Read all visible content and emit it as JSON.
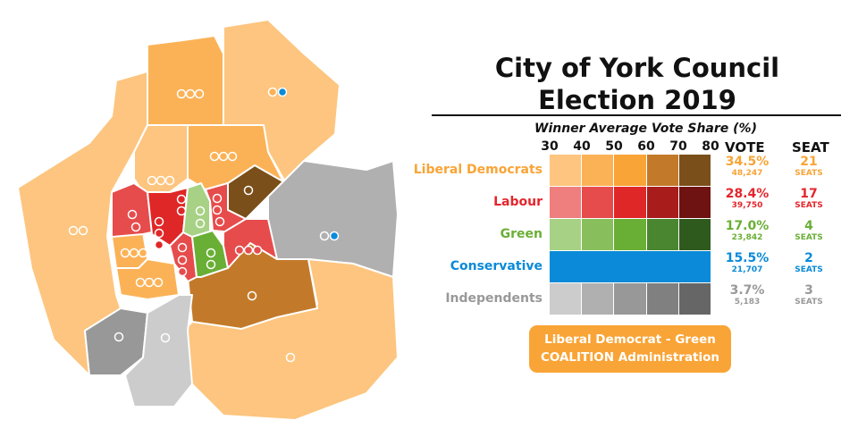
{
  "title_line1": "City of York Council",
  "title_line2": "Election 2019",
  "scale_title": "Winner Average Vote Share (%)",
  "scale_ticks": [
    "30",
    "40",
    "50",
    "60",
    "70",
    "80"
  ],
  "col_vote": "VOTE",
  "col_seat": "SEAT",
  "parties": [
    {
      "name": "Liberal Democrats",
      "color": "#f9a436",
      "shades": [
        "#fdc57f",
        "#fbb256",
        "#f9a436",
        "#c27a2a",
        "#7a4f1a"
      ],
      "vote_pct": "34.5%",
      "votes": "48,247",
      "seats": "21",
      "seats_label": "SEATS"
    },
    {
      "name": "Labour",
      "color": "#e3262c",
      "shades": [
        "#ef7f7f",
        "#e64c4c",
        "#e02727",
        "#a81c1c",
        "#6e1212"
      ],
      "vote_pct": "28.4%",
      "votes": "39,750",
      "seats": "17",
      "seats_label": "SEATS"
    },
    {
      "name": "Green",
      "color": "#6aaf35",
      "shades": [
        "#a7d184",
        "#88bf5c",
        "#6aaf35",
        "#4a8530",
        "#2f5a1e"
      ],
      "vote_pct": "17.0%",
      "votes": "23,842",
      "seats": "4",
      "seats_label": "SEATS"
    },
    {
      "name": "Conservative",
      "color": "#0a8ad8",
      "shades": [
        "#0a8ad8"
      ],
      "vote_pct": "15.5%",
      "votes": "21,707",
      "seats": "2",
      "seats_label": "SEATS"
    },
    {
      "name": "Independents",
      "color": "#999999",
      "shades": [
        "#cccccc",
        "#b0b0b0",
        "#989898",
        "#808080",
        "#666666"
      ],
      "vote_pct": "3.7%",
      "votes": "5,183",
      "seats": "3",
      "seats_label": "SEATS"
    }
  ],
  "coalition_line1": "Liberal Democrat - Green",
  "coalition_line2": "COALITION Administration"
}
